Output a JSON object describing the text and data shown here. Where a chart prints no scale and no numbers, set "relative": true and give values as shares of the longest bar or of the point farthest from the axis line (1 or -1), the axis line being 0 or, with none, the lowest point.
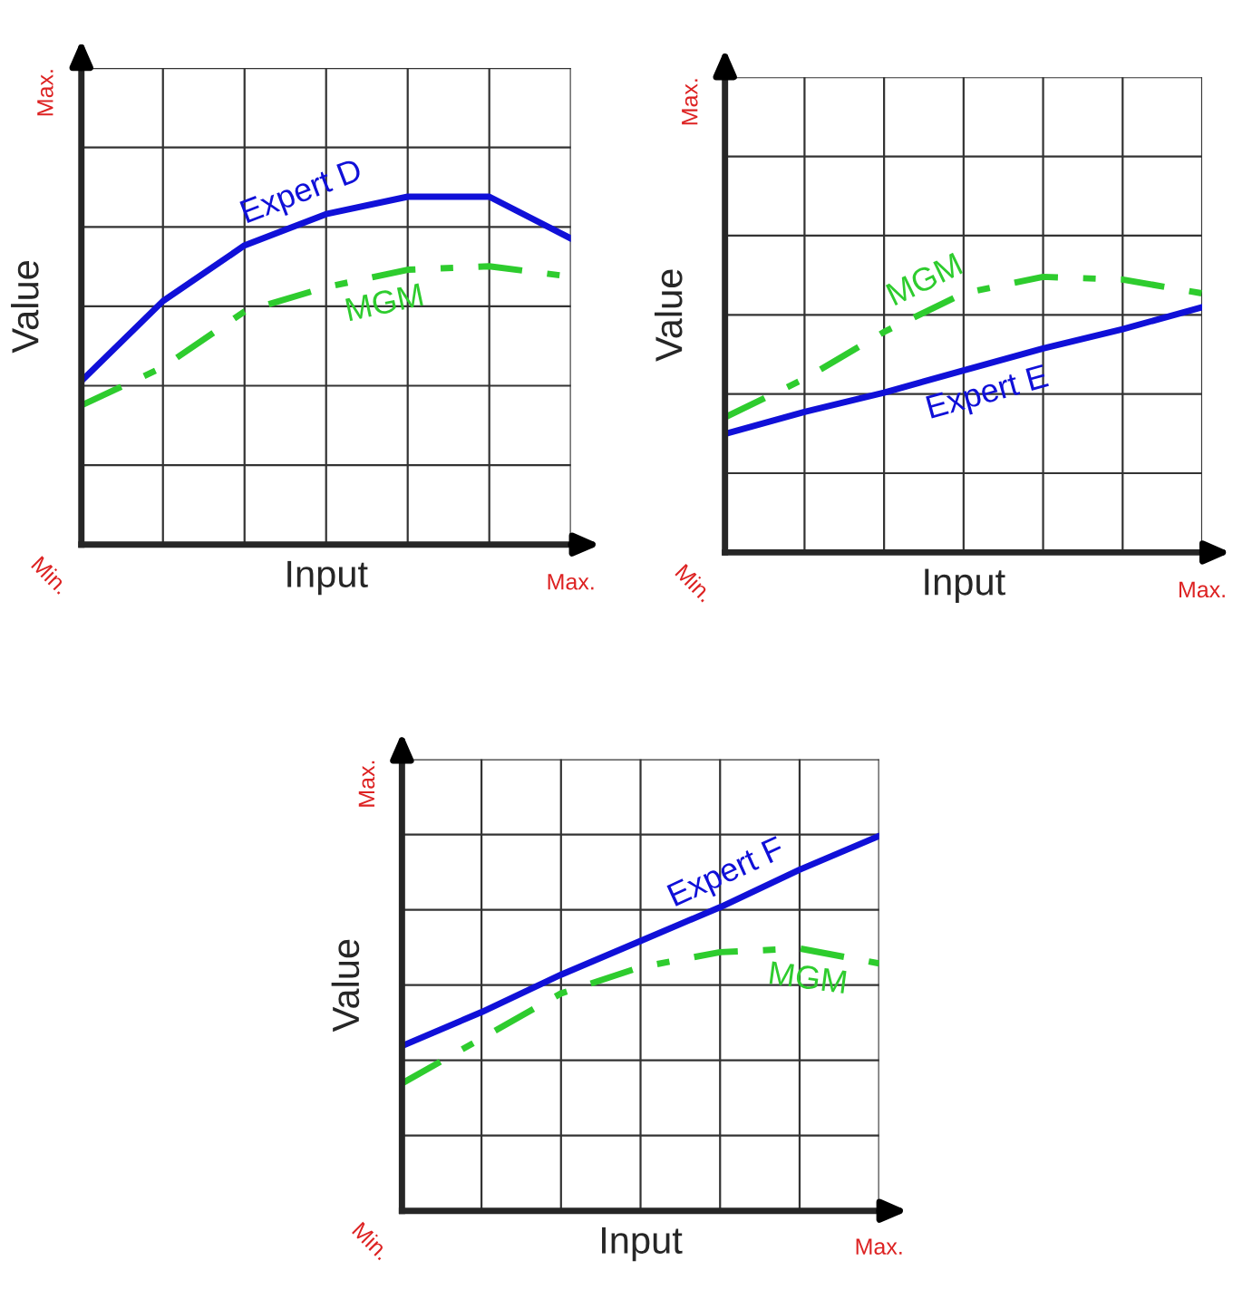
{
  "chart_data": [
    {
      "type": "line",
      "xlabel": "Input",
      "ylabel": "Value",
      "relative": true,
      "grid": true,
      "annotations": [
        "Min.",
        "Max.",
        "Max."
      ],
      "categories": [
        null,
        null,
        null,
        null,
        null,
        null,
        null
      ],
      "series": [
        {
          "name": "Expert D",
          "color": "#1010d8",
          "line_style": "solid",
          "values": [
            0.47,
            0.7,
            0.86,
            0.95,
            1,
            1,
            0.88
          ]
        },
        {
          "name": "MGM",
          "color": "#2ecc2e",
          "line_style": "dashdot",
          "values": [
            0.4,
            0.51,
            0.67,
            0.74,
            0.79,
            0.8,
            0.77
          ]
        }
      ]
    },
    {
      "type": "line",
      "xlabel": "Input",
      "ylabel": "Value",
      "relative": true,
      "grid": true,
      "annotations": [
        "Min.",
        "Max.",
        "Max."
      ],
      "categories": [
        null,
        null,
        null,
        null,
        null,
        null,
        null
      ],
      "series": [
        {
          "name": "MGM",
          "color": "#2ecc2e",
          "line_style": "dashdot",
          "values": [
            0.49,
            0.63,
            0.8,
            0.94,
            1,
            0.99,
            0.94
          ]
        },
        {
          "name": "Expert E",
          "color": "#1010d8",
          "line_style": "solid",
          "values": [
            0.43,
            0.51,
            0.58,
            0.66,
            0.74,
            0.81,
            0.89
          ]
        }
      ]
    },
    {
      "type": "line",
      "xlabel": "Input",
      "ylabel": "Value",
      "relative": true,
      "grid": true,
      "annotations": [
        "Min.",
        "Max.",
        "Max."
      ],
      "categories": [
        null,
        null,
        null,
        null,
        null,
        null,
        null
      ],
      "series": [
        {
          "name": "Expert F",
          "color": "#1010d8",
          "line_style": "solid",
          "values": [
            0.44,
            0.53,
            0.63,
            0.72,
            0.81,
            0.91,
            1
          ]
        },
        {
          "name": "MGM",
          "color": "#2ecc2e",
          "line_style": "dashdot",
          "values": [
            0.34,
            0.46,
            0.58,
            0.65,
            0.69,
            0.7,
            0.66
          ]
        }
      ]
    }
  ]
}
